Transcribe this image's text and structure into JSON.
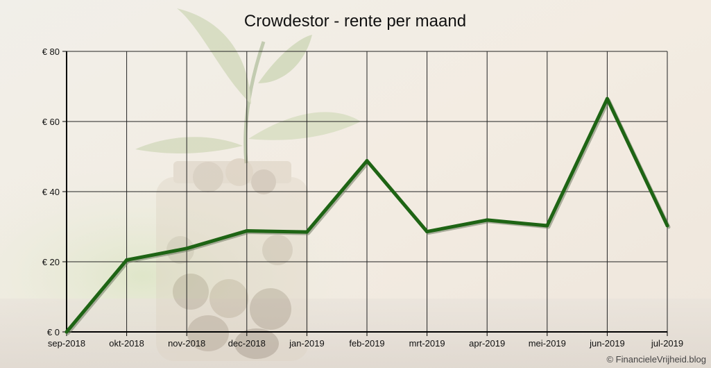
{
  "chart_data": {
    "type": "line",
    "title": "Crowdestor - rente per maand",
    "xlabel": "",
    "ylabel": "",
    "categories": [
      "sep-2018",
      "okt-2018",
      "nov-2018",
      "dec-2018",
      "jan-2019",
      "feb-2019",
      "mrt-2019",
      "apr-2019",
      "mei-2019",
      "jun-2019",
      "jul-2019"
    ],
    "series": [
      {
        "values": [
          0,
          20.5,
          23.8,
          28.8,
          28.5,
          48.8,
          28.6,
          31.9,
          30.3,
          66.5,
          30.3
        ]
      }
    ],
    "ylim": [
      0,
      80
    ],
    "yticks": [
      0,
      20,
      40,
      60,
      80
    ],
    "ytick_labels": [
      "€ 0",
      "€ 20",
      "€ 40",
      "€ 60",
      "€ 80"
    ],
    "grid": true,
    "legend": "none",
    "line_color": "#1e6414"
  },
  "footer": {
    "copyright": "© FinancieleVrijheid.blog"
  }
}
